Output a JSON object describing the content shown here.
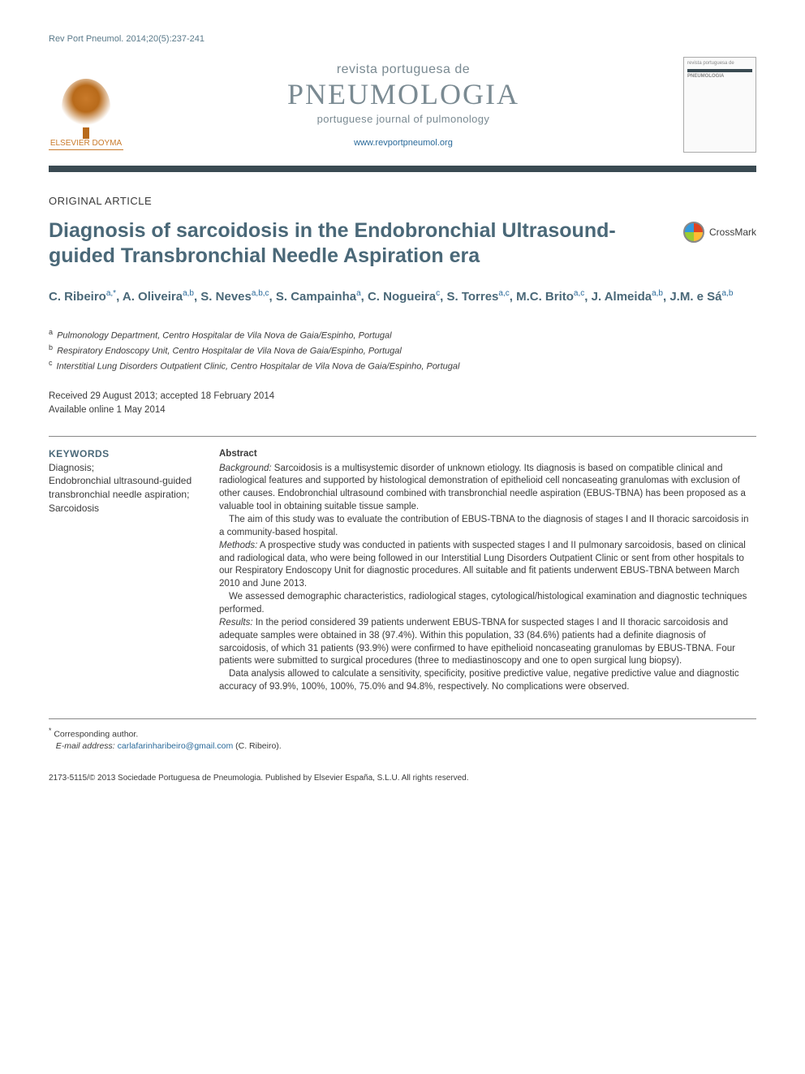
{
  "header": {
    "citation": "Rev Port Pneumol. 2014;20(5):237-241",
    "publisher_logo_label": "ELSEVIER DOYMA",
    "journal": {
      "line1": "revista portuguesa de",
      "line2": "PNEUMOLOGIA",
      "line3": "portuguese journal of pulmonology",
      "url": "www.revportpneumol.org"
    },
    "cover_thumb": {
      "line1": "revista portuguesa de",
      "line2": "PNEUMOLOGIA"
    }
  },
  "article": {
    "type": "ORIGINAL ARTICLE",
    "title": "Diagnosis of sarcoidosis in the Endobronchial Ultrasound-guided Transbronchial Needle Aspiration era",
    "crossmark_label": "CrossMark",
    "authors_html": "C. Ribeiro<sup>a,*</sup>, A. Oliveira<sup>a,b</sup>, S. Neves<sup>a,b,c</sup>, S. Campainha<sup>a</sup>, C. Nogueira<sup>c</sup>, S. Torres<sup>a,c</sup>, M.C. Brito<sup>a,c</sup>, J. Almeida<sup>a,b</sup>, J.M. e Sá<sup>a,b</sup>",
    "affiliations": [
      {
        "mark": "a",
        "text": "Pulmonology Department, Centro Hospitalar de Vila Nova de Gaia/Espinho, Portugal"
      },
      {
        "mark": "b",
        "text": "Respiratory Endoscopy Unit, Centro Hospitalar de Vila Nova de Gaia/Espinho, Portugal"
      },
      {
        "mark": "c",
        "text": "Interstitial Lung Disorders Outpatient Clinic, Centro Hospitalar de Vila Nova de Gaia/Espinho, Portugal"
      }
    ],
    "dates": {
      "received_accepted": "Received 29 August 2013; accepted 18 February 2014",
      "online": "Available online 1 May 2014"
    }
  },
  "keywords": {
    "head": "KEYWORDS",
    "list": "Diagnosis;\nEndobronchial ultrasound-guided transbronchial needle aspiration;\nSarcoidosis"
  },
  "abstract": {
    "head": "Abstract",
    "background_label": "Background:",
    "background": " Sarcoidosis is a multisystemic disorder of unknown etiology. Its diagnosis is based on compatible clinical and radiological features and supported by histological demonstration of epithelioid cell noncaseating granulomas with exclusion of other causes. Endobronchial ultrasound combined with transbronchial needle aspiration (EBUS-TBNA) has been proposed as a valuable tool in obtaining suitable tissue sample.",
    "aim": "The aim of this study was to evaluate the contribution of EBUS-TBNA to the diagnosis of stages I and II thoracic sarcoidosis in a community-based hospital.",
    "methods_label": "Methods:",
    "methods": " A prospective study was conducted in patients with suspected stages I and II pulmonary sarcoidosis, based on clinical and radiological data, who were being followed in our Interstitial Lung Disorders Outpatient Clinic or sent from other hospitals to our Respiratory Endoscopy Unit for diagnostic procedures. All suitable and fit patients underwent EBUS-TBNA between March 2010 and June 2013.",
    "methods2": "We assessed demographic characteristics, radiological stages, cytological/histological examination and diagnostic techniques performed.",
    "results_label": "Results:",
    "results": " In the period considered 39 patients underwent EBUS-TBNA for suspected stages I and II thoracic sarcoidosis and adequate samples were obtained in 38 (97.4%). Within this population, 33 (84.6%) patients had a definite diagnosis of sarcoidosis, of which 31 patients (93.9%) were confirmed to have epithelioid noncaseating granulomas by EBUS-TBNA. Four patients were submitted to surgical procedures (three to mediastinoscopy and one to open surgical lung biopsy).",
    "results2": "Data analysis allowed to calculate a sensitivity, specificity, positive predictive value, negative predictive value and diagnostic accuracy of 93.9%, 100%, 100%, 75.0% and 94.8%, respectively. No complications were observed."
  },
  "footer": {
    "corresponding_label": "Corresponding author.",
    "email_label": "E-mail address:",
    "email": "carlafarinharibeiro@gmail.com",
    "email_author": "(C. Ribeiro).",
    "copyright": "2173-5115/© 2013 Sociedade Portuguesa de Pneumologia. Published by Elsevier España, S.L.U. All rights reserved."
  },
  "colors": {
    "heading_blue": "#4a6878",
    "link_blue": "#2a6a9a",
    "dark_band": "#3a4a52",
    "text": "#3a3a3a",
    "elsevier_orange": "#c97a2a"
  }
}
